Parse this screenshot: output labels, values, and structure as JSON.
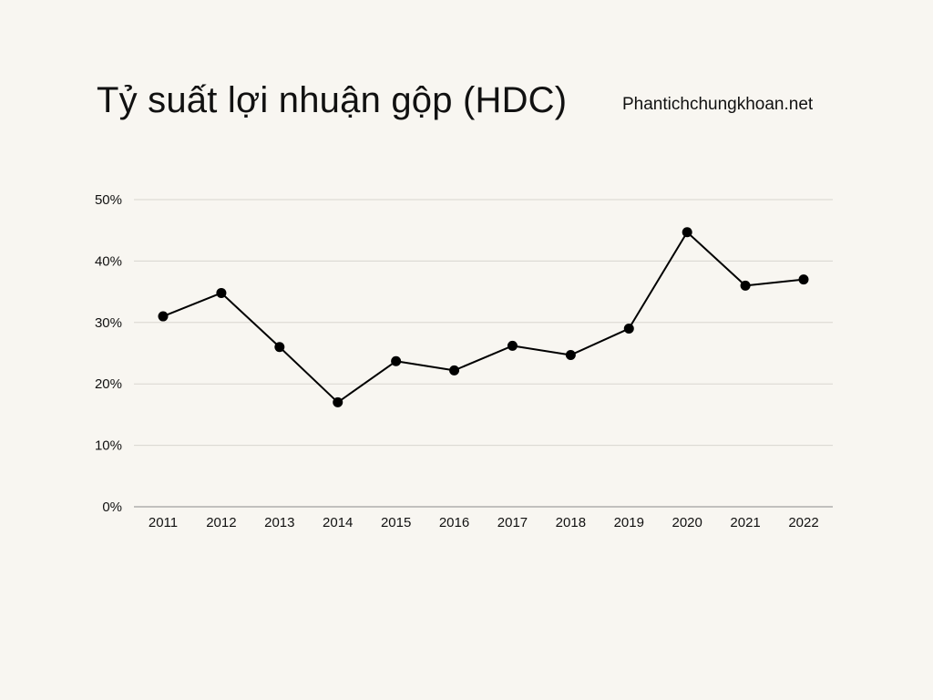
{
  "page": {
    "title": "Tỷ suất lợi nhuận gộp (HDC)",
    "source": "Phantichchungkhoan.net"
  },
  "colors": {
    "background": "#f8f6f1",
    "line": "#000000",
    "grid": "#d9d6d0",
    "axis": "#8a8a8a",
    "text": "#111111"
  },
  "chart_data": {
    "type": "line",
    "title": "Tỷ suất lợi nhuận gộp (HDC)",
    "xlabel": "",
    "ylabel": "",
    "categories": [
      "2011",
      "2012",
      "2013",
      "2014",
      "2015",
      "2016",
      "2017",
      "2018",
      "2019",
      "2020",
      "2021",
      "2022"
    ],
    "series": [
      {
        "values": [
          31.0,
          34.8,
          26.0,
          17.0,
          23.7,
          22.2,
          26.2,
          24.7,
          29.0,
          44.7,
          36.0,
          37.0
        ]
      }
    ],
    "ylim": [
      0,
      50
    ],
    "yticks": [
      0,
      10,
      20,
      30,
      40,
      50
    ],
    "ytick_labels": [
      "0%",
      "10%",
      "20%",
      "30%",
      "40%",
      "50%"
    ],
    "grid": true,
    "markers": true
  }
}
